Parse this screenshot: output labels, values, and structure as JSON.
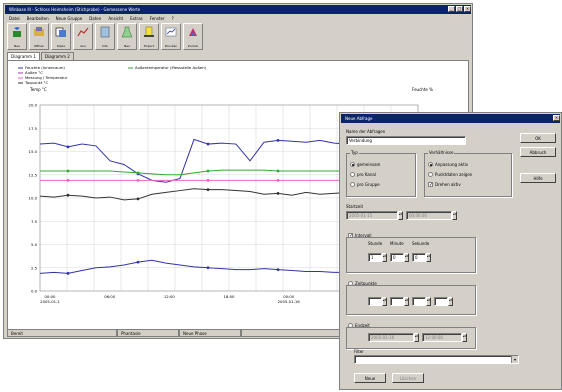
{
  "app": {
    "title": "Winbase III - Schloss Heimsheim (Stichprobe) - Gemessene Werte",
    "menu": [
      "Datei",
      "Bearbeiten",
      "Neue Gruppe",
      "Daten",
      "Ansicht",
      "Extras",
      "Fenster",
      "?"
    ],
    "toolbar": [
      "Neu",
      "Öffnen",
      "Kopie",
      "Aus",
      "Info",
      "Neu",
      "Export",
      "Drucken",
      "Zurück"
    ],
    "tabs": [
      "Diagramm 1",
      "Diagramm 2"
    ],
    "status": [
      "Bereit",
      "Phantasie",
      "Neue Phase",
      ""
    ]
  },
  "chart_data": {
    "type": "line",
    "legend": [
      "Feuchte (Innenraum)",
      "Außentemperatur (Messstelle Außen)",
      "Außen °C",
      "Messung / Temperatur",
      "Taupunkt °C"
    ],
    "y_left_label": "Temp °C",
    "y_right_label": "Feuchte %",
    "y_ticks": [
      "20.0",
      "17.5",
      "15.0",
      "12.5",
      "10.0",
      "7.5",
      "5.0",
      "2.5",
      "0.0"
    ],
    "ylim": [
      0,
      20
    ],
    "x_ticks": [
      "00:00\n2005-01-1",
      "06:00",
      "12:00",
      "18:00",
      "00:00\n2005-01-16",
      "06:00",
      "12:00"
    ],
    "series": [
      {
        "name": "Feuchte (Innenraum)",
        "color": "#3333aa",
        "values": [
          15.8,
          15.9,
          15.5,
          15.8,
          15.6,
          14.0,
          13.6,
          12.6,
          11.9,
          11.7,
          12.1,
          16.3,
          15.8,
          15.9,
          15.8,
          14.0,
          16.0,
          16.2,
          16.1,
          16.0,
          16.2,
          15.9,
          15.8,
          16.1,
          15.4,
          13.3,
          13.2,
          13.1
        ]
      },
      {
        "name": "Außentemperatur (Messstelle Außen)",
        "color": "#33aa33",
        "values": [
          12.9,
          12.9,
          12.9,
          12.9,
          12.9,
          12.9,
          12.8,
          12.7,
          12.6,
          12.5,
          12.5,
          12.7,
          12.9,
          13.0,
          13.0,
          13.0,
          13.0,
          12.9,
          12.9,
          12.9,
          12.9,
          12.9,
          12.9,
          12.9,
          12.9,
          12.9,
          12.9,
          12.8
        ]
      },
      {
        "name": "Messung / Temperatur",
        "color": "#ee66cc",
        "values": [
          11.9,
          11.9,
          11.9,
          11.9,
          11.9,
          11.9,
          11.9,
          11.9,
          11.9,
          11.9,
          11.9,
          11.9,
          11.9,
          11.9,
          11.9,
          11.9,
          11.9,
          11.9,
          11.9,
          11.9,
          11.9,
          11.9,
          11.9,
          11.9,
          11.9,
          11.9,
          11.9,
          11.9
        ]
      },
      {
        "name": "Taupunkt °C",
        "color": "#333333",
        "values": [
          10.2,
          10.1,
          10.3,
          10.2,
          10.0,
          10.1,
          9.8,
          9.9,
          10.4,
          10.6,
          10.8,
          11.0,
          10.9,
          10.9,
          10.8,
          10.7,
          10.4,
          10.5,
          10.3,
          10.6,
          10.4,
          10.5,
          10.6,
          10.5,
          10.3,
          10.6,
          10.5,
          10.2
        ]
      },
      {
        "name": "Außen °C",
        "color": "#3333aa",
        "values": [
          1.9,
          2.0,
          1.9,
          2.2,
          2.5,
          2.6,
          2.8,
          3.1,
          3.3,
          3.0,
          2.8,
          2.6,
          2.5,
          2.4,
          2.3,
          2.3,
          2.4,
          2.3,
          2.2,
          2.1,
          2.1,
          2.0,
          2.0,
          2.1,
          1.9,
          1.8,
          1.8,
          1.7
        ]
      }
    ]
  },
  "dialog": {
    "title": "Neue Abfrage",
    "name_label": "Name der Abfragen",
    "name_value": "Verbindung",
    "type_group": "Typ",
    "type_options": [
      "gemeinsam",
      "pro Kanal",
      "pro Gruppe"
    ],
    "type_selected": 0,
    "interp_group": "Verhältnisse",
    "interp_options": [
      "Anpassung aktiv",
      "Punktdaten zeigen",
      "Drehen aktiv"
    ],
    "interp_selected": 0,
    "interp_check_checked": true,
    "start_label": "Startzeit",
    "start_date": "2005-01-15",
    "start_time": "00:00:00",
    "interval_label": "Intervall",
    "interval_checked": true,
    "interval_cols": [
      "Stunde",
      "Minute",
      "Sekunde"
    ],
    "interval_values": [
      "1",
      "0",
      "0"
    ],
    "period_label": "Zeitpunkte",
    "period_values": [
      "",
      "",
      "",
      ""
    ],
    "end_label": "Endzeit",
    "end_date": "2005-01-16",
    "end_time": "12:00:00",
    "filter_label": "Filter",
    "filter_value": "",
    "buttons": [
      "OK",
      "Abbruch",
      "Hilfe"
    ],
    "bottom_buttons": [
      "Neue",
      "Löschen"
    ]
  }
}
